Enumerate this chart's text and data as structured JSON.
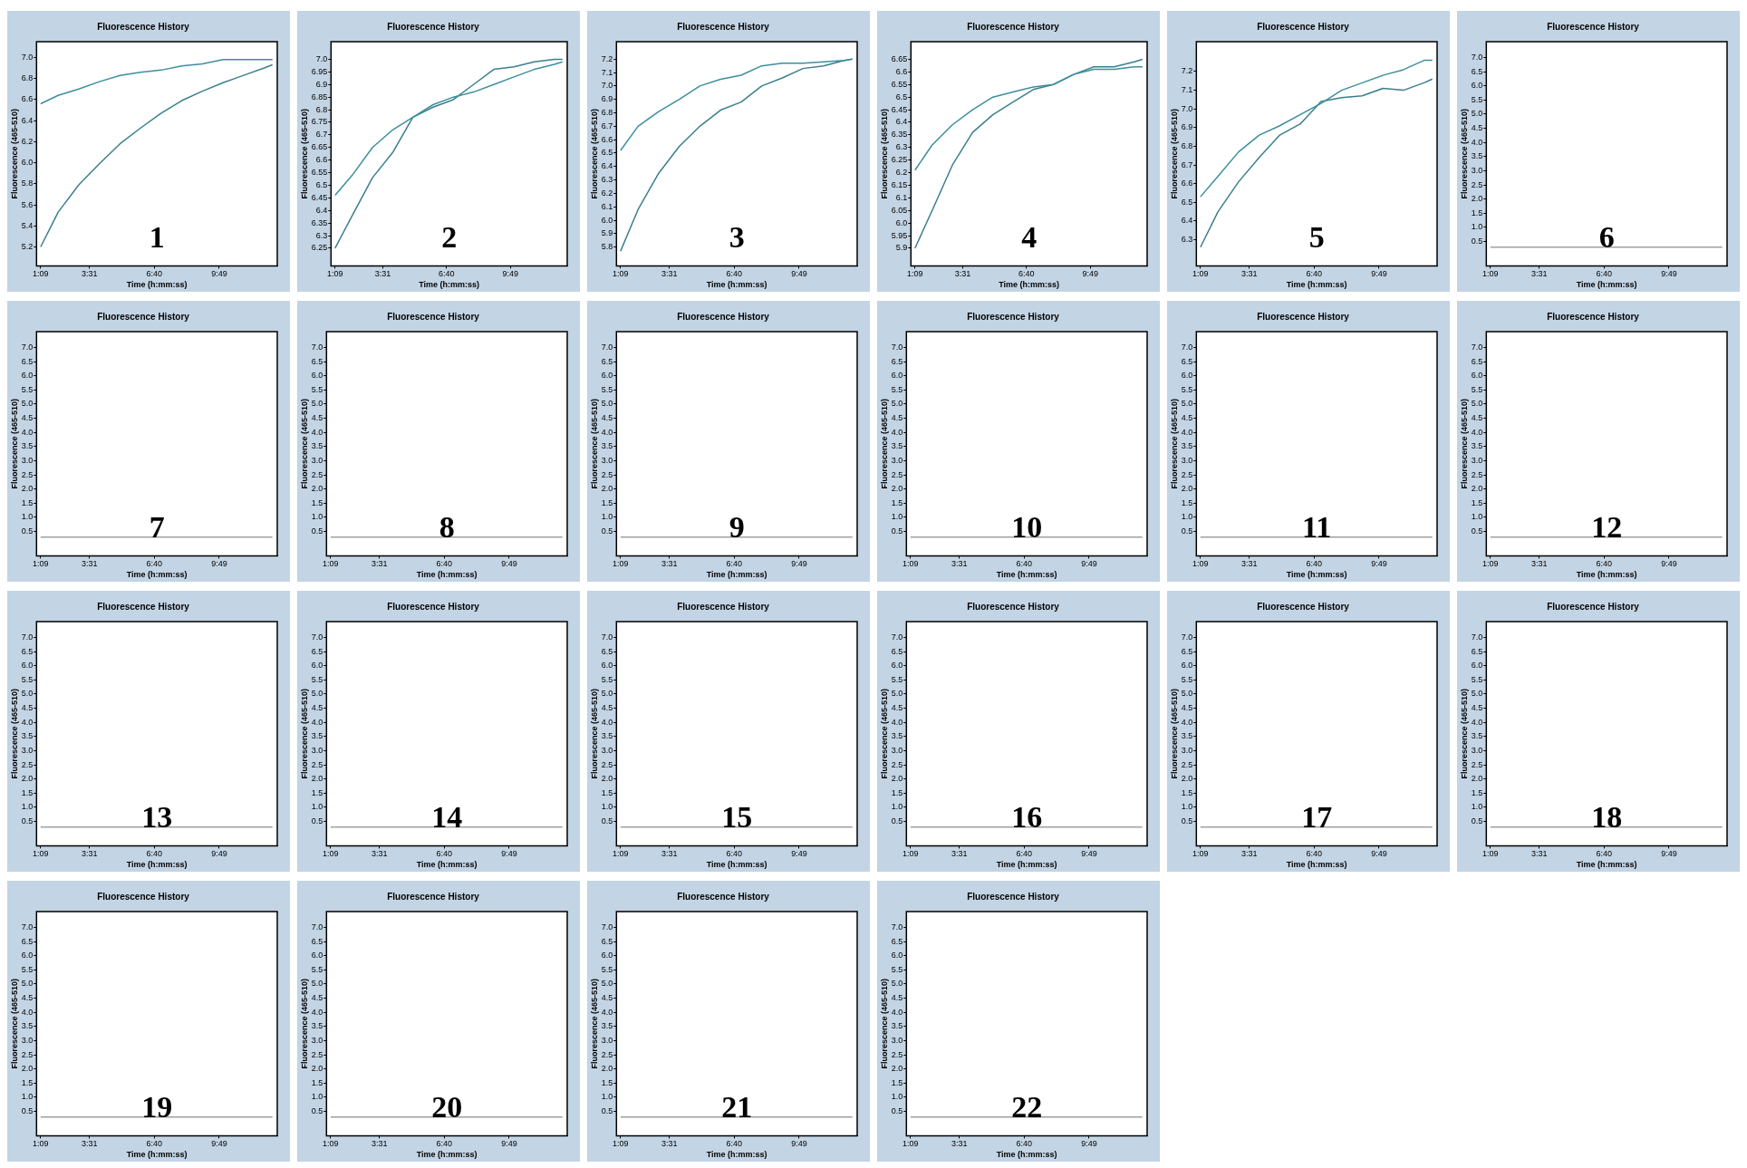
{
  "chart_data": [
    {
      "type": "line",
      "title": "Fluorescence History",
      "xlabel": "Time (h:mm:ss)",
      "ylabel": "Fluorescence (465-510)",
      "annotations": [
        "1"
      ],
      "xlim": [
        57,
        758
      ],
      "xticks": [
        {
          "value": 69,
          "label": "1:09"
        },
        {
          "value": 211,
          "label": "3:31"
        },
        {
          "value": 400,
          "label": "6:40"
        },
        {
          "value": 589,
          "label": "9:49"
        }
      ],
      "ylim": [
        5.02,
        7.15
      ],
      "yticks": [
        5.2,
        5.4,
        5.6,
        5.8,
        {
          "value": 6,
          "label": "6.0"
        },
        6.2,
        6.4,
        6.6,
        6.8,
        {
          "value": 7,
          "label": "7.0"
        }
      ],
      "x": [
        69,
        120,
        180,
        240,
        300,
        360,
        420,
        480,
        540,
        600,
        660,
        720,
        744
      ],
      "series": [
        {
          "color": "#3c8f9c",
          "values": [
            6.56,
            6.64,
            6.7,
            6.77,
            6.83,
            6.86,
            6.88,
            6.92,
            6.94,
            6.98,
            6.98,
            6.98,
            6.98
          ]
        },
        {
          "color": "#3a7f8c",
          "values": [
            5.2,
            5.53,
            5.79,
            5.99,
            6.18,
            6.33,
            6.47,
            6.59,
            6.68,
            6.76,
            6.83,
            6.9,
            6.93
          ]
        }
      ]
    },
    {
      "type": "line",
      "title": "Fluorescence History",
      "xlabel": "Time (h:mm:ss)",
      "ylabel": "Fluorescence (465-510)",
      "annotations": [
        "2"
      ],
      "xlim": [
        57,
        758
      ],
      "xticks": [
        {
          "value": 69,
          "label": "1:09"
        },
        {
          "value": 211,
          "label": "3:31"
        },
        {
          "value": 400,
          "label": "6:40"
        },
        {
          "value": 589,
          "label": "9:49"
        }
      ],
      "ylim": [
        6.18,
        7.07
      ],
      "yticks": [
        6.25,
        6.3,
        6.35,
        6.4,
        6.45,
        6.5,
        6.55,
        6.6,
        6.65,
        6.7,
        6.75,
        6.8,
        6.85,
        6.9,
        6.95,
        {
          "value": 7,
          "label": "7.0"
        }
      ],
      "x": [
        69,
        120,
        180,
        240,
        300,
        360,
        420,
        480,
        540,
        600,
        660,
        720,
        744
      ],
      "series": [
        {
          "color": "#3c8f9c",
          "values": [
            6.46,
            6.54,
            6.65,
            6.72,
            6.77,
            6.82,
            6.85,
            6.87,
            6.9,
            6.93,
            6.96,
            6.98,
            6.99
          ]
        },
        {
          "color": "#3a7f8c",
          "values": [
            6.25,
            6.38,
            6.53,
            6.63,
            6.77,
            6.81,
            6.84,
            6.9,
            6.96,
            6.97,
            6.99,
            7.0,
            7.0
          ]
        }
      ]
    },
    {
      "type": "line",
      "title": "Fluorescence History",
      "xlabel": "Time (h:mm:ss)",
      "ylabel": "Fluorescence (465-510)",
      "annotations": [
        "3"
      ],
      "xlim": [
        57,
        758
      ],
      "xticks": [
        {
          "value": 69,
          "label": "1:09"
        },
        {
          "value": 211,
          "label": "3:31"
        },
        {
          "value": 400,
          "label": "6:40"
        },
        {
          "value": 589,
          "label": "9:49"
        }
      ],
      "ylim": [
        5.66,
        7.33
      ],
      "yticks": [
        5.8,
        5.9,
        {
          "value": 6,
          "label": "6.0"
        },
        6.1,
        6.2,
        6.3,
        6.4,
        6.5,
        6.6,
        6.7,
        6.8,
        6.9,
        {
          "value": 7,
          "label": "7.0"
        },
        7.1,
        7.2
      ],
      "x": [
        69,
        120,
        180,
        240,
        300,
        360,
        420,
        480,
        540,
        600,
        660,
        720,
        744
      ],
      "series": [
        {
          "color": "#3c8f9c",
          "values": [
            6.52,
            6.7,
            6.81,
            6.9,
            7.0,
            7.05,
            7.08,
            7.15,
            7.17,
            7.17,
            7.18,
            7.19,
            7.2
          ]
        },
        {
          "color": "#3a7f8c",
          "values": [
            5.77,
            6.08,
            6.35,
            6.55,
            6.7,
            6.82,
            6.88,
            7.0,
            7.06,
            7.13,
            7.15,
            7.19,
            7.2
          ]
        }
      ]
    },
    {
      "type": "line",
      "title": "Fluorescence History",
      "xlabel": "Time (h:mm:ss)",
      "ylabel": "Fluorescence (465-510)",
      "annotations": [
        "4"
      ],
      "xlim": [
        57,
        758
      ],
      "xticks": [
        {
          "value": 69,
          "label": "1:09"
        },
        {
          "value": 211,
          "label": "3:31"
        },
        {
          "value": 400,
          "label": "6:40"
        },
        {
          "value": 589,
          "label": "9:49"
        }
      ],
      "ylim": [
        5.83,
        6.72
      ],
      "yticks": [
        5.9,
        5.95,
        {
          "value": 6,
          "label": "6.0"
        },
        6.05,
        6.1,
        6.15,
        6.2,
        6.25,
        6.3,
        6.35,
        6.4,
        6.45,
        6.5,
        6.55,
        6.6,
        6.65
      ],
      "x": [
        69,
        120,
        180,
        240,
        300,
        360,
        420,
        480,
        540,
        600,
        660,
        720,
        744
      ],
      "series": [
        {
          "color": "#3c8f9c",
          "values": [
            6.21,
            6.31,
            6.39,
            6.45,
            6.5,
            6.52,
            6.54,
            6.55,
            6.59,
            6.61,
            6.61,
            6.62,
            6.62
          ]
        },
        {
          "color": "#3a7f8c",
          "values": [
            5.9,
            6.05,
            6.23,
            6.36,
            6.43,
            6.48,
            6.53,
            6.55,
            6.59,
            6.62,
            6.62,
            6.64,
            6.65
          ]
        }
      ]
    },
    {
      "type": "line",
      "title": "Fluorescence History",
      "xlabel": "Time (h:mm:ss)",
      "ylabel": "Fluorescence (465-510)",
      "annotations": [
        "5"
      ],
      "xlim": [
        57,
        758
      ],
      "xticks": [
        {
          "value": 69,
          "label": "1:09"
        },
        {
          "value": 211,
          "label": "3:31"
        },
        {
          "value": 400,
          "label": "6:40"
        },
        {
          "value": 589,
          "label": "9:49"
        }
      ],
      "ylim": [
        6.16,
        7.36
      ],
      "yticks": [
        6.3,
        6.4,
        6.5,
        6.6,
        6.7,
        6.8,
        6.9,
        {
          "value": 7,
          "label": "7.0"
        },
        7.1,
        7.2
      ],
      "x": [
        69,
        120,
        180,
        240,
        300,
        360,
        420,
        480,
        540,
        600,
        660,
        720,
        744
      ],
      "series": [
        {
          "color": "#3c8f9c",
          "values": [
            6.53,
            6.64,
            6.77,
            6.86,
            6.91,
            6.97,
            7.03,
            7.1,
            7.14,
            7.18,
            7.21,
            7.26,
            7.26
          ]
        },
        {
          "color": "#3a7f8c",
          "values": [
            6.26,
            6.45,
            6.61,
            6.74,
            6.86,
            6.92,
            7.04,
            7.06,
            7.07,
            7.11,
            7.1,
            7.14,
            7.16
          ]
        }
      ]
    },
    {
      "type": "line",
      "title": "Fluorescence History",
      "xlabel": "Time (h:mm:ss)",
      "ylabel": "Fluorescence (465-510)",
      "annotations": [
        "6"
      ],
      "xlim": [
        57,
        758
      ],
      "xticks": [
        {
          "value": 69,
          "label": "1:09"
        },
        {
          "value": 211,
          "label": "3:31"
        },
        {
          "value": 400,
          "label": "6:40"
        },
        {
          "value": 589,
          "label": "9:49"
        }
      ],
      "ylim": [
        -0.36,
        7.56
      ],
      "yticks": [
        0.5,
        {
          "value": 1,
          "label": "1.0"
        },
        1.5,
        {
          "value": 2,
          "label": "2.0"
        },
        2.5,
        {
          "value": 3,
          "label": "3.0"
        },
        3.5,
        {
          "value": 4,
          "label": "4.0"
        },
        4.5,
        {
          "value": 5,
          "label": "5.0"
        },
        5.5,
        {
          "value": 6,
          "label": "6.0"
        },
        6.5,
        {
          "value": 7,
          "label": "7.0"
        }
      ],
      "x": [
        69,
        744
      ],
      "series": [
        {
          "color": "#a0a0a0",
          "values": [
            0.3,
            0.3
          ]
        }
      ]
    },
    {
      "type": "line",
      "title": "Fluorescence History",
      "xlabel": "Time (h:mm:ss)",
      "ylabel": "Fluorescence (465-510)",
      "annotations": [
        "7"
      ],
      "xlim": [
        57,
        758
      ],
      "xticks": [
        {
          "value": 69,
          "label": "1:09"
        },
        {
          "value": 211,
          "label": "3:31"
        },
        {
          "value": 400,
          "label": "6:40"
        },
        {
          "value": 589,
          "label": "9:49"
        }
      ],
      "ylim": [
        -0.36,
        7.56
      ],
      "yticks": [
        0.5,
        {
          "value": 1,
          "label": "1.0"
        },
        1.5,
        {
          "value": 2,
          "label": "2.0"
        },
        2.5,
        {
          "value": 3,
          "label": "3.0"
        },
        3.5,
        {
          "value": 4,
          "label": "4.0"
        },
        4.5,
        {
          "value": 5,
          "label": "5.0"
        },
        5.5,
        {
          "value": 6,
          "label": "6.0"
        },
        6.5,
        {
          "value": 7,
          "label": "7.0"
        }
      ],
      "x": [
        69,
        744
      ],
      "series": [
        {
          "color": "#a0a0a0",
          "values": [
            0.3,
            0.3
          ]
        }
      ]
    },
    {
      "type": "line",
      "title": "Fluorescence History",
      "xlabel": "Time (h:mm:ss)",
      "ylabel": "Fluorescence (465-510)",
      "annotations": [
        "8"
      ],
      "xlim": [
        57,
        758
      ],
      "xticks": [
        {
          "value": 69,
          "label": "1:09"
        },
        {
          "value": 211,
          "label": "3:31"
        },
        {
          "value": 400,
          "label": "6:40"
        },
        {
          "value": 589,
          "label": "9:49"
        }
      ],
      "ylim": [
        -0.36,
        7.56
      ],
      "yticks": [
        0.5,
        {
          "value": 1,
          "label": "1.0"
        },
        1.5,
        {
          "value": 2,
          "label": "2.0"
        },
        2.5,
        {
          "value": 3,
          "label": "3.0"
        },
        3.5,
        {
          "value": 4,
          "label": "4.0"
        },
        4.5,
        {
          "value": 5,
          "label": "5.0"
        },
        5.5,
        {
          "value": 6,
          "label": "6.0"
        },
        6.5,
        {
          "value": 7,
          "label": "7.0"
        }
      ],
      "x": [
        69,
        744
      ],
      "series": [
        {
          "color": "#a0a0a0",
          "values": [
            0.3,
            0.3
          ]
        }
      ]
    },
    {
      "type": "line",
      "title": "Fluorescence History",
      "xlabel": "Time (h:mm:ss)",
      "ylabel": "Fluorescence (465-510)",
      "annotations": [
        "9"
      ],
      "xlim": [
        57,
        758
      ],
      "xticks": [
        {
          "value": 69,
          "label": "1:09"
        },
        {
          "value": 211,
          "label": "3:31"
        },
        {
          "value": 400,
          "label": "6:40"
        },
        {
          "value": 589,
          "label": "9:49"
        }
      ],
      "ylim": [
        -0.36,
        7.56
      ],
      "yticks": [
        0.5,
        {
          "value": 1,
          "label": "1.0"
        },
        1.5,
        {
          "value": 2,
          "label": "2.0"
        },
        2.5,
        {
          "value": 3,
          "label": "3.0"
        },
        3.5,
        {
          "value": 4,
          "label": "4.0"
        },
        4.5,
        {
          "value": 5,
          "label": "5.0"
        },
        5.5,
        {
          "value": 6,
          "label": "6.0"
        },
        6.5,
        {
          "value": 7,
          "label": "7.0"
        }
      ],
      "x": [
        69,
        744
      ],
      "series": [
        {
          "color": "#a0a0a0",
          "values": [
            0.3,
            0.3
          ]
        }
      ]
    },
    {
      "type": "line",
      "title": "Fluorescence History",
      "xlabel": "Time (h:mm:ss)",
      "ylabel": "Fluorescence (465-510)",
      "annotations": [
        "10"
      ],
      "xlim": [
        57,
        758
      ],
      "xticks": [
        {
          "value": 69,
          "label": "1:09"
        },
        {
          "value": 211,
          "label": "3:31"
        },
        {
          "value": 400,
          "label": "6:40"
        },
        {
          "value": 589,
          "label": "9:49"
        }
      ],
      "ylim": [
        -0.36,
        7.56
      ],
      "yticks": [
        0.5,
        {
          "value": 1,
          "label": "1.0"
        },
        1.5,
        {
          "value": 2,
          "label": "2.0"
        },
        2.5,
        {
          "value": 3,
          "label": "3.0"
        },
        3.5,
        {
          "value": 4,
          "label": "4.0"
        },
        4.5,
        {
          "value": 5,
          "label": "5.0"
        },
        5.5,
        {
          "value": 6,
          "label": "6.0"
        },
        6.5,
        {
          "value": 7,
          "label": "7.0"
        }
      ],
      "x": [
        69,
        744
      ],
      "series": [
        {
          "color": "#a0a0a0",
          "values": [
            0.3,
            0.3
          ]
        }
      ]
    },
    {
      "type": "line",
      "title": "Fluorescence History",
      "xlabel": "Time (h:mm:ss)",
      "ylabel": "Fluorescence (465-510)",
      "annotations": [
        "11"
      ],
      "xlim": [
        57,
        758
      ],
      "xticks": [
        {
          "value": 69,
          "label": "1:09"
        },
        {
          "value": 211,
          "label": "3:31"
        },
        {
          "value": 400,
          "label": "6:40"
        },
        {
          "value": 589,
          "label": "9:49"
        }
      ],
      "ylim": [
        -0.36,
        7.56
      ],
      "yticks": [
        0.5,
        {
          "value": 1,
          "label": "1.0"
        },
        1.5,
        {
          "value": 2,
          "label": "2.0"
        },
        2.5,
        {
          "value": 3,
          "label": "3.0"
        },
        3.5,
        {
          "value": 4,
          "label": "4.0"
        },
        4.5,
        {
          "value": 5,
          "label": "5.0"
        },
        5.5,
        {
          "value": 6,
          "label": "6.0"
        },
        6.5,
        {
          "value": 7,
          "label": "7.0"
        }
      ],
      "x": [
        69,
        744
      ],
      "series": [
        {
          "color": "#a0a0a0",
          "values": [
            0.3,
            0.3
          ]
        }
      ]
    },
    {
      "type": "line",
      "title": "Fluorescence History",
      "xlabel": "Time (h:mm:ss)",
      "ylabel": "Fluorescence (465-510)",
      "annotations": [
        "12"
      ],
      "xlim": [
        57,
        758
      ],
      "xticks": [
        {
          "value": 69,
          "label": "1:09"
        },
        {
          "value": 211,
          "label": "3:31"
        },
        {
          "value": 400,
          "label": "6:40"
        },
        {
          "value": 589,
          "label": "9:49"
        }
      ],
      "ylim": [
        -0.36,
        7.56
      ],
      "yticks": [
        0.5,
        {
          "value": 1,
          "label": "1.0"
        },
        1.5,
        {
          "value": 2,
          "label": "2.0"
        },
        2.5,
        {
          "value": 3,
          "label": "3.0"
        },
        3.5,
        {
          "value": 4,
          "label": "4.0"
        },
        4.5,
        {
          "value": 5,
          "label": "5.0"
        },
        5.5,
        {
          "value": 6,
          "label": "6.0"
        },
        6.5,
        {
          "value": 7,
          "label": "7.0"
        }
      ],
      "x": [
        69,
        744
      ],
      "series": [
        {
          "color": "#a0a0a0",
          "values": [
            0.3,
            0.3
          ]
        }
      ]
    },
    {
      "type": "line",
      "title": "Fluorescence History",
      "xlabel": "Time (h:mm:ss)",
      "ylabel": "Fluorescence (465-510)",
      "annotations": [
        "13"
      ],
      "xlim": [
        57,
        758
      ],
      "xticks": [
        {
          "value": 69,
          "label": "1:09"
        },
        {
          "value": 211,
          "label": "3:31"
        },
        {
          "value": 400,
          "label": "6:40"
        },
        {
          "value": 589,
          "label": "9:49"
        }
      ],
      "ylim": [
        -0.36,
        7.56
      ],
      "yticks": [
        0.5,
        {
          "value": 1,
          "label": "1.0"
        },
        1.5,
        {
          "value": 2,
          "label": "2.0"
        },
        2.5,
        {
          "value": 3,
          "label": "3.0"
        },
        3.5,
        {
          "value": 4,
          "label": "4.0"
        },
        4.5,
        {
          "value": 5,
          "label": "5.0"
        },
        5.5,
        {
          "value": 6,
          "label": "6.0"
        },
        6.5,
        {
          "value": 7,
          "label": "7.0"
        }
      ],
      "x": [
        69,
        744
      ],
      "series": [
        {
          "color": "#a0a0a0",
          "values": [
            0.3,
            0.3
          ]
        }
      ]
    },
    {
      "type": "line",
      "title": "Fluorescence History",
      "xlabel": "Time (h:mm:ss)",
      "ylabel": "Fluorescence (465-510)",
      "annotations": [
        "14"
      ],
      "xlim": [
        57,
        758
      ],
      "xticks": [
        {
          "value": 69,
          "label": "1:09"
        },
        {
          "value": 211,
          "label": "3:31"
        },
        {
          "value": 400,
          "label": "6:40"
        },
        {
          "value": 589,
          "label": "9:49"
        }
      ],
      "ylim": [
        -0.36,
        7.56
      ],
      "yticks": [
        0.5,
        {
          "value": 1,
          "label": "1.0"
        },
        1.5,
        {
          "value": 2,
          "label": "2.0"
        },
        2.5,
        {
          "value": 3,
          "label": "3.0"
        },
        3.5,
        {
          "value": 4,
          "label": "4.0"
        },
        4.5,
        {
          "value": 5,
          "label": "5.0"
        },
        5.5,
        {
          "value": 6,
          "label": "6.0"
        },
        6.5,
        {
          "value": 7,
          "label": "7.0"
        }
      ],
      "x": [
        69,
        744
      ],
      "series": [
        {
          "color": "#a0a0a0",
          "values": [
            0.3,
            0.3
          ]
        }
      ]
    },
    {
      "type": "line",
      "title": "Fluorescence History",
      "xlabel": "Time (h:mm:ss)",
      "ylabel": "Fluorescence (465-510)",
      "annotations": [
        "15"
      ],
      "xlim": [
        57,
        758
      ],
      "xticks": [
        {
          "value": 69,
          "label": "1:09"
        },
        {
          "value": 211,
          "label": "3:31"
        },
        {
          "value": 400,
          "label": "6:40"
        },
        {
          "value": 589,
          "label": "9:49"
        }
      ],
      "ylim": [
        -0.36,
        7.56
      ],
      "yticks": [
        0.5,
        {
          "value": 1,
          "label": "1.0"
        },
        1.5,
        {
          "value": 2,
          "label": "2.0"
        },
        2.5,
        {
          "value": 3,
          "label": "3.0"
        },
        3.5,
        {
          "value": 4,
          "label": "4.0"
        },
        4.5,
        {
          "value": 5,
          "label": "5.0"
        },
        5.5,
        {
          "value": 6,
          "label": "6.0"
        },
        6.5,
        {
          "value": 7,
          "label": "7.0"
        }
      ],
      "x": [
        69,
        744
      ],
      "series": [
        {
          "color": "#a0a0a0",
          "values": [
            0.3,
            0.3
          ]
        }
      ]
    },
    {
      "type": "line",
      "title": "Fluorescence History",
      "xlabel": "Time (h:mm:ss)",
      "ylabel": "Fluorescence (465-510)",
      "annotations": [
        "16"
      ],
      "xlim": [
        57,
        758
      ],
      "xticks": [
        {
          "value": 69,
          "label": "1:09"
        },
        {
          "value": 211,
          "label": "3:31"
        },
        {
          "value": 400,
          "label": "6:40"
        },
        {
          "value": 589,
          "label": "9:49"
        }
      ],
      "ylim": [
        -0.36,
        7.56
      ],
      "yticks": [
        0.5,
        {
          "value": 1,
          "label": "1.0"
        },
        1.5,
        {
          "value": 2,
          "label": "2.0"
        },
        2.5,
        {
          "value": 3,
          "label": "3.0"
        },
        3.5,
        {
          "value": 4,
          "label": "4.0"
        },
        4.5,
        {
          "value": 5,
          "label": "5.0"
        },
        5.5,
        {
          "value": 6,
          "label": "6.0"
        },
        6.5,
        {
          "value": 7,
          "label": "7.0"
        }
      ],
      "x": [
        69,
        744
      ],
      "series": [
        {
          "color": "#a0a0a0",
          "values": [
            0.3,
            0.3
          ]
        }
      ]
    },
    {
      "type": "line",
      "title": "Fluorescence History",
      "xlabel": "Time (h:mm:ss)",
      "ylabel": "Fluorescence (465-510)",
      "annotations": [
        "17"
      ],
      "xlim": [
        57,
        758
      ],
      "xticks": [
        {
          "value": 69,
          "label": "1:09"
        },
        {
          "value": 211,
          "label": "3:31"
        },
        {
          "value": 400,
          "label": "6:40"
        },
        {
          "value": 589,
          "label": "9:49"
        }
      ],
      "ylim": [
        -0.36,
        7.56
      ],
      "yticks": [
        0.5,
        {
          "value": 1,
          "label": "1.0"
        },
        1.5,
        {
          "value": 2,
          "label": "2.0"
        },
        2.5,
        {
          "value": 3,
          "label": "3.0"
        },
        3.5,
        {
          "value": 4,
          "label": "4.0"
        },
        4.5,
        {
          "value": 5,
          "label": "5.0"
        },
        5.5,
        {
          "value": 6,
          "label": "6.0"
        },
        6.5,
        {
          "value": 7,
          "label": "7.0"
        }
      ],
      "x": [
        69,
        744
      ],
      "series": [
        {
          "color": "#a0a0a0",
          "values": [
            0.3,
            0.3
          ]
        }
      ]
    },
    {
      "type": "line",
      "title": "Fluorescence History",
      "xlabel": "Time (h:mm:ss)",
      "ylabel": "Fluorescence (465-510)",
      "annotations": [
        "18"
      ],
      "xlim": [
        57,
        758
      ],
      "xticks": [
        {
          "value": 69,
          "label": "1:09"
        },
        {
          "value": 211,
          "label": "3:31"
        },
        {
          "value": 400,
          "label": "6:40"
        },
        {
          "value": 589,
          "label": "9:49"
        }
      ],
      "ylim": [
        -0.36,
        7.56
      ],
      "yticks": [
        0.5,
        {
          "value": 1,
          "label": "1.0"
        },
        1.5,
        {
          "value": 2,
          "label": "2.0"
        },
        2.5,
        {
          "value": 3,
          "label": "3.0"
        },
        3.5,
        {
          "value": 4,
          "label": "4.0"
        },
        4.5,
        {
          "value": 5,
          "label": "5.0"
        },
        5.5,
        {
          "value": 6,
          "label": "6.0"
        },
        6.5,
        {
          "value": 7,
          "label": "7.0"
        }
      ],
      "x": [
        69,
        744
      ],
      "series": [
        {
          "color": "#a0a0a0",
          "values": [
            0.3,
            0.3
          ]
        }
      ]
    },
    {
      "type": "line",
      "title": "Fluorescence History",
      "xlabel": "Time (h:mm:ss)",
      "ylabel": "Fluorescence (465-510)",
      "annotations": [
        "19"
      ],
      "xlim": [
        57,
        758
      ],
      "xticks": [
        {
          "value": 69,
          "label": "1:09"
        },
        {
          "value": 211,
          "label": "3:31"
        },
        {
          "value": 400,
          "label": "6:40"
        },
        {
          "value": 589,
          "label": "9:49"
        }
      ],
      "ylim": [
        -0.36,
        7.56
      ],
      "yticks": [
        0.5,
        {
          "value": 1,
          "label": "1.0"
        },
        1.5,
        {
          "value": 2,
          "label": "2.0"
        },
        2.5,
        {
          "value": 3,
          "label": "3.0"
        },
        3.5,
        {
          "value": 4,
          "label": "4.0"
        },
        4.5,
        {
          "value": 5,
          "label": "5.0"
        },
        5.5,
        {
          "value": 6,
          "label": "6.0"
        },
        6.5,
        {
          "value": 7,
          "label": "7.0"
        }
      ],
      "x": [
        69,
        744
      ],
      "series": [
        {
          "color": "#a0a0a0",
          "values": [
            0.3,
            0.3
          ]
        }
      ]
    },
    {
      "type": "line",
      "title": "Fluorescence History",
      "xlabel": "Time (h:mm:ss)",
      "ylabel": "Fluorescence (465-510)",
      "annotations": [
        "20"
      ],
      "xlim": [
        57,
        758
      ],
      "xticks": [
        {
          "value": 69,
          "label": "1:09"
        },
        {
          "value": 211,
          "label": "3:31"
        },
        {
          "value": 400,
          "label": "6:40"
        },
        {
          "value": 589,
          "label": "9:49"
        }
      ],
      "ylim": [
        -0.36,
        7.56
      ],
      "yticks": [
        0.5,
        {
          "value": 1,
          "label": "1.0"
        },
        1.5,
        {
          "value": 2,
          "label": "2.0"
        },
        2.5,
        {
          "value": 3,
          "label": "3.0"
        },
        3.5,
        {
          "value": 4,
          "label": "4.0"
        },
        4.5,
        {
          "value": 5,
          "label": "5.0"
        },
        5.5,
        {
          "value": 6,
          "label": "6.0"
        },
        6.5,
        {
          "value": 7,
          "label": "7.0"
        }
      ],
      "x": [
        69,
        744
      ],
      "series": [
        {
          "color": "#a0a0a0",
          "values": [
            0.3,
            0.3
          ]
        }
      ]
    },
    {
      "type": "line",
      "title": "Fluorescence History",
      "xlabel": "Time (h:mm:ss)",
      "ylabel": "Fluorescence (465-510)",
      "annotations": [
        "21"
      ],
      "xlim": [
        57,
        758
      ],
      "xticks": [
        {
          "value": 69,
          "label": "1:09"
        },
        {
          "value": 211,
          "label": "3:31"
        },
        {
          "value": 400,
          "label": "6:40"
        },
        {
          "value": 589,
          "label": "9:49"
        }
      ],
      "ylim": [
        -0.36,
        7.56
      ],
      "yticks": [
        0.5,
        {
          "value": 1,
          "label": "1.0"
        },
        1.5,
        {
          "value": 2,
          "label": "2.0"
        },
        2.5,
        {
          "value": 3,
          "label": "3.0"
        },
        3.5,
        {
          "value": 4,
          "label": "4.0"
        },
        4.5,
        {
          "value": 5,
          "label": "5.0"
        },
        5.5,
        {
          "value": 6,
          "label": "6.0"
        },
        6.5,
        {
          "value": 7,
          "label": "7.0"
        }
      ],
      "x": [
        69,
        744
      ],
      "series": [
        {
          "color": "#a0a0a0",
          "values": [
            0.3,
            0.3
          ]
        }
      ]
    },
    {
      "type": "line",
      "title": "Fluorescence History",
      "xlabel": "Time (h:mm:ss)",
      "ylabel": "Fluorescence (465-510)",
      "annotations": [
        "22"
      ],
      "xlim": [
        57,
        758
      ],
      "xticks": [
        {
          "value": 69,
          "label": "1:09"
        },
        {
          "value": 211,
          "label": "3:31"
        },
        {
          "value": 400,
          "label": "6:40"
        },
        {
          "value": 589,
          "label": "9:49"
        }
      ],
      "ylim": [
        -0.36,
        7.56
      ],
      "yticks": [
        0.5,
        {
          "value": 1,
          "label": "1.0"
        },
        1.5,
        {
          "value": 2,
          "label": "2.0"
        },
        2.5,
        {
          "value": 3,
          "label": "3.0"
        },
        3.5,
        {
          "value": 4,
          "label": "4.0"
        },
        4.5,
        {
          "value": 5,
          "label": "5.0"
        },
        5.5,
        {
          "value": 6,
          "label": "6.0"
        },
        6.5,
        {
          "value": 7,
          "label": "7.0"
        }
      ],
      "x": [
        69,
        744
      ],
      "series": [
        {
          "color": "#a0a0a0",
          "values": [
            0.3,
            0.3
          ]
        }
      ]
    }
  ]
}
